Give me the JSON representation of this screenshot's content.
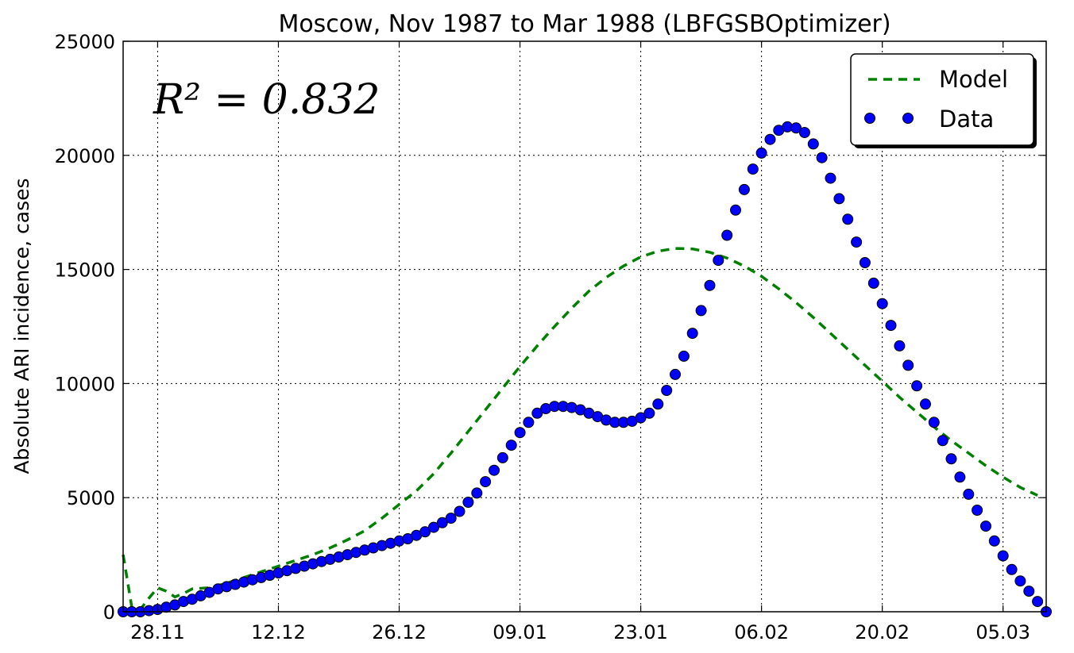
{
  "chart_data": {
    "type": "line",
    "title": "Moscow, Nov 1987 to Mar 1988 (LBFGSBOptimizer)",
    "xlabel": "",
    "ylabel": "Absolute ARI incidence, cases",
    "annotation": "R² = 0.832",
    "ylim": [
      0,
      25000
    ],
    "xlim": [
      0,
      107
    ],
    "yticks": [
      0,
      5000,
      10000,
      15000,
      20000,
      25000
    ],
    "xticks": [
      {
        "day": 4,
        "label": "28.11"
      },
      {
        "day": 18,
        "label": "12.12"
      },
      {
        "day": 32,
        "label": "26.12"
      },
      {
        "day": 46,
        "label": "09.01"
      },
      {
        "day": 60,
        "label": "23.01"
      },
      {
        "day": 74,
        "label": "06.02"
      },
      {
        "day": 88,
        "label": "20.02"
      },
      {
        "day": 102,
        "label": "05.03"
      }
    ],
    "grid": true,
    "legend": "top-right",
    "series": [
      {
        "name": "Model",
        "style": "dashed",
        "color": "#008000",
        "x": [
          0,
          1,
          2,
          3,
          4,
          5,
          6,
          7,
          8,
          10,
          12,
          14,
          16,
          18,
          20,
          22,
          24,
          26,
          28,
          30,
          32,
          34,
          36,
          38,
          40,
          42,
          44,
          46,
          48,
          50,
          52,
          54,
          56,
          58,
          60,
          62,
          64,
          66,
          68,
          70,
          72,
          74,
          76,
          78,
          80,
          82,
          84,
          86,
          88,
          90,
          92,
          94,
          96,
          98,
          100,
          102,
          104,
          106
        ],
        "values": [
          2500,
          200,
          100,
          600,
          1050,
          900,
          650,
          800,
          1000,
          1050,
          1250,
          1500,
          1750,
          2000,
          2250,
          2500,
          2800,
          3150,
          3550,
          4100,
          4700,
          5300,
          6050,
          6950,
          7900,
          8850,
          9800,
          10750,
          11650,
          12500,
          13300,
          14050,
          14650,
          15150,
          15550,
          15800,
          15920,
          15900,
          15750,
          15500,
          15150,
          14700,
          14150,
          13550,
          12900,
          12200,
          11500,
          10800,
          10100,
          9400,
          8750,
          8100,
          7500,
          6950,
          6400,
          5900,
          5450,
          5100
        ]
      },
      {
        "name": "Data",
        "style": "markers",
        "color": "#0000ff",
        "x": [
          0,
          1,
          2,
          3,
          4,
          5,
          6,
          7,
          8,
          9,
          10,
          11,
          12,
          13,
          14,
          15,
          16,
          17,
          18,
          19,
          20,
          21,
          22,
          23,
          24,
          25,
          26,
          27,
          28,
          29,
          30,
          31,
          32,
          33,
          34,
          35,
          36,
          37,
          38,
          39,
          40,
          41,
          42,
          43,
          44,
          45,
          46,
          47,
          48,
          49,
          50,
          51,
          52,
          53,
          54,
          55,
          56,
          57,
          58,
          59,
          60,
          61,
          62,
          63,
          64,
          65,
          66,
          67,
          68,
          69,
          70,
          71,
          72,
          73,
          74,
          75,
          76,
          77,
          78,
          79,
          80,
          81,
          82,
          83,
          84,
          85,
          86,
          87,
          88,
          89,
          90,
          91,
          92,
          93,
          94,
          95,
          96,
          97,
          98,
          99,
          100,
          101,
          102,
          103,
          104,
          105,
          106,
          107
        ],
        "values": [
          0,
          0,
          0,
          50,
          100,
          200,
          300,
          450,
          550,
          700,
          850,
          1000,
          1100,
          1200,
          1300,
          1400,
          1500,
          1600,
          1700,
          1800,
          1900,
          2000,
          2100,
          2200,
          2300,
          2400,
          2500,
          2600,
          2700,
          2800,
          2900,
          3000,
          3100,
          3200,
          3350,
          3500,
          3700,
          3900,
          4100,
          4400,
          4800,
          5200,
          5700,
          6200,
          6750,
          7300,
          7850,
          8300,
          8700,
          8900,
          9000,
          9000,
          8950,
          8850,
          8700,
          8550,
          8400,
          8300,
          8300,
          8350,
          8500,
          8700,
          9100,
          9700,
          10400,
          11200,
          12200,
          13200,
          14300,
          15400,
          16500,
          17600,
          18500,
          19400,
          20100,
          20700,
          21100,
          21250,
          21200,
          21000,
          20500,
          19900,
          19000,
          18100,
          17200,
          16200,
          15300,
          14400,
          13500,
          12550,
          11650,
          10800,
          9900,
          9100,
          8300,
          7500,
          6700,
          5900,
          5150,
          4450,
          3750,
          3100,
          2450,
          1850,
          1350,
          900,
          450,
          0
        ]
      }
    ]
  }
}
